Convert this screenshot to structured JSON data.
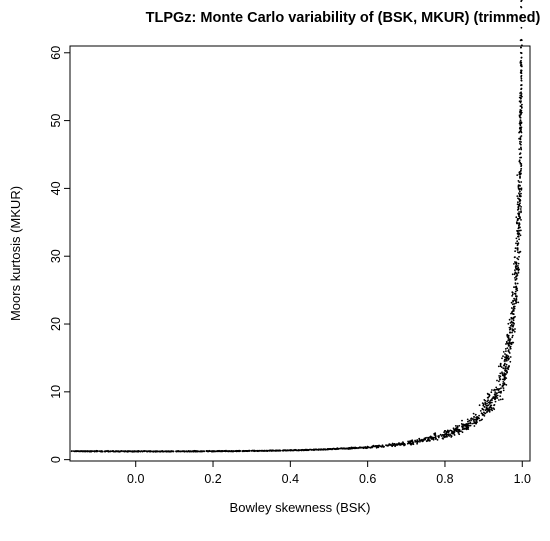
{
  "chart_data": {
    "type": "scatter",
    "title": "TLPGz: Monte Carlo variability of (BSK, MKUR) (trimmed)",
    "xlabel": "Bowley skewness (BSK)",
    "ylabel": "Moors kurtosis (MKUR)",
    "xlim": [
      -0.17,
      1.02
    ],
    "ylim": [
      -0.2,
      61
    ],
    "xticks": [
      0.0,
      0.2,
      0.4,
      0.6,
      0.8,
      1.0
    ],
    "xtick_labels": [
      "0.0",
      "0.2",
      "0.4",
      "0.6",
      "0.8",
      "1.0"
    ],
    "yticks": [
      0,
      10,
      20,
      30,
      40,
      50,
      60
    ],
    "ytick_labels": [
      "0",
      "10",
      "20",
      "30",
      "40",
      "50",
      "60"
    ],
    "grid": false,
    "point_color": "#000000",
    "series": [
      {
        "x": [
          -0.16,
          -0.12,
          -0.08,
          -0.04,
          0.0,
          0.04,
          0.08,
          0.12,
          0.16,
          0.2,
          0.24,
          0.28,
          0.32,
          0.36,
          0.4,
          0.44,
          0.48,
          0.52,
          0.56,
          0.6,
          0.64,
          0.68,
          0.72,
          0.76,
          0.8,
          0.82,
          0.84,
          0.86,
          0.88,
          0.9,
          0.91,
          0.92,
          0.93,
          0.94,
          0.95,
          0.955,
          0.96,
          0.965,
          0.97,
          0.975,
          0.98,
          0.982,
          0.985,
          0.988,
          0.99,
          0.992,
          0.993,
          0.995,
          0.996,
          0.997,
          0.998,
          0.999
        ],
        "y": [
          1.24,
          1.23,
          1.23,
          1.22,
          1.22,
          1.22,
          1.22,
          1.23,
          1.23,
          1.24,
          1.25,
          1.27,
          1.3,
          1.33,
          1.37,
          1.42,
          1.5,
          1.59,
          1.7,
          1.84,
          2.02,
          2.26,
          2.6,
          3.05,
          3.7,
          4.1,
          4.6,
          5.2,
          6.0,
          7.1,
          7.8,
          8.6,
          9.6,
          10.9,
          12.6,
          13.6,
          14.9,
          16.4,
          18.3,
          20.7,
          24.0,
          25.5,
          28.3,
          31.6,
          34.2,
          37.4,
          39.3,
          44.0,
          47.1,
          50.8,
          54.8,
          59.5
        ]
      }
    ]
  }
}
